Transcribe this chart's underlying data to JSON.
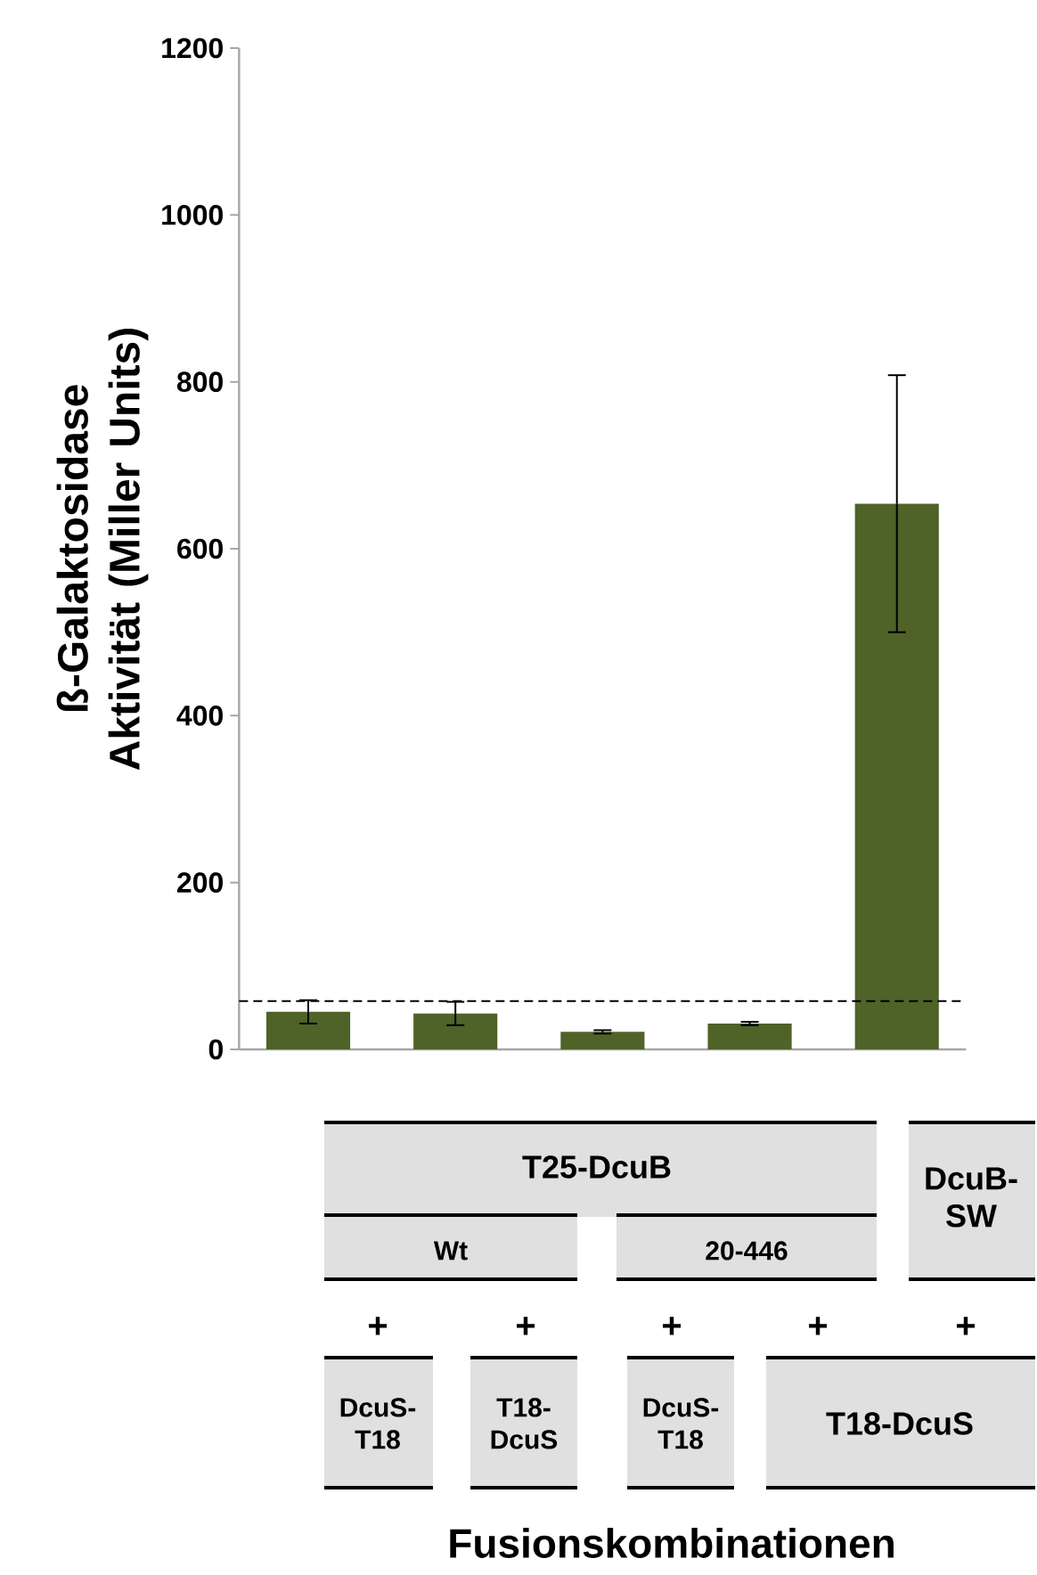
{
  "chart_data": {
    "type": "bar",
    "ylabel": "ß-Galaktosidase Aktivität (Miller Units)",
    "categories": [
      null,
      null,
      null,
      null,
      null
    ],
    "values": [
      45,
      43,
      21,
      31,
      654
    ],
    "errors": [
      14,
      14,
      2,
      2,
      154
    ],
    "color": "#4f6228",
    "ylim": [
      0,
      1200
    ],
    "yticks": [
      0,
      200,
      400,
      600,
      800,
      1000,
      1200
    ],
    "grid": false,
    "ref_lines": [
      {
        "axis": "y",
        "value": 58,
        "line_style": "dashed",
        "color": "#000000"
      }
    ],
    "annotations": [
      "T25-DcuB",
      "DcuB-SW",
      "Wt",
      "20-446",
      "+",
      "+",
      "+",
      "+",
      "+",
      "DcuS-T18",
      "T18-DcuS",
      "DcuS-T18",
      "T18-DcuS",
      "Fusionskombinationen"
    ]
  }
}
